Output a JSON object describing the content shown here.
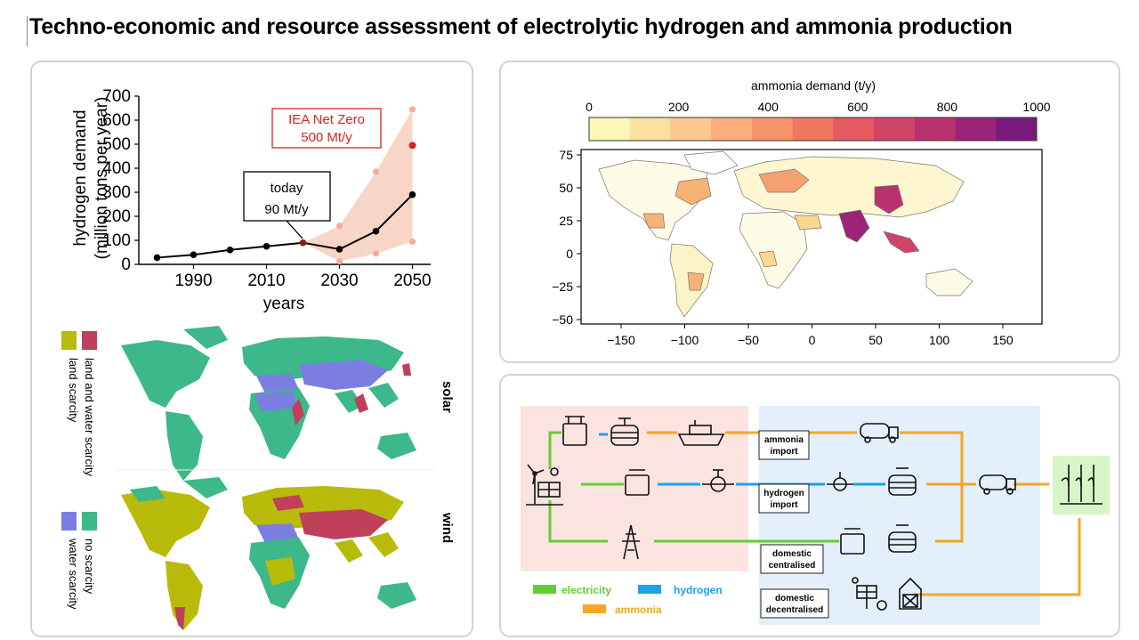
{
  "title": "Techno-economic and resource assessment of electrolytic hydrogen and ammonia production",
  "colors": {
    "electricity": "#66cc33",
    "hydrogen": "#1aa3ee",
    "ammonia": "#f5a623",
    "iea": "#e02020",
    "band": "#f6c8b4",
    "no_scarcity": "#3cb88a",
    "water_scarcity": "#7b7ee0",
    "land_scarcity": "#b8bb0a",
    "land_water_scarcity": "#c0405a",
    "red_zone": "#fbe3e0",
    "blue_zone": "#e3f0fb",
    "farm_box": "#d8f5c8"
  },
  "chart_data": {
    "type": "line",
    "xlabel": "years",
    "ylabel": "hydrogen demand",
    "ylabel2": "(million tons per year)",
    "xticks": [
      1990,
      2010,
      2030,
      2050
    ],
    "yticks": [
      0,
      100,
      200,
      300,
      400,
      500,
      600,
      700
    ],
    "xlim": [
      1975,
      2055
    ],
    "ylim": [
      0,
      700
    ],
    "series": [
      {
        "x": [
          1980,
          1990,
          2000,
          2010,
          2020,
          2030,
          2040,
          2050
        ],
        "values": [
          28,
          40,
          60,
          75,
          90,
          63,
          138,
          290
        ]
      }
    ],
    "band": {
      "x": [
        2020,
        2030,
        2040,
        2050
      ],
      "upper": [
        90,
        160,
        385,
        645
      ],
      "lower": [
        90,
        12,
        45,
        95
      ]
    },
    "highlight": {
      "x": 2050,
      "y": 495
    },
    "annotations": {
      "today_line1": "today",
      "today_line2": "90 Mt/y",
      "iea_line1": "IEA Net Zero",
      "iea_line2": "500 Mt/y"
    }
  },
  "scarcity": {
    "legend_land_water": "land and water scarcity",
    "legend_land": "land scarcity",
    "legend_no": "no scarcity",
    "legend_water": "water scarcity",
    "solar_label": "solar",
    "wind_label": "wind"
  },
  "demand_map": {
    "colorbar_label": "ammonia demand (t/y)",
    "colorbar_ticks": [
      "0",
      "200",
      "400",
      "600",
      "800",
      "1000"
    ],
    "colorbar_colors": [
      "#fcf6b8",
      "#fce0a0",
      "#fcc890",
      "#fbae7c",
      "#f7936a",
      "#ef765f",
      "#e35a60",
      "#d04468",
      "#b8326f",
      "#9c2478",
      "#7a1a7c"
    ],
    "xticks": [
      "−150",
      "−100",
      "−50",
      "0",
      "50",
      "100",
      "150"
    ],
    "yticks": [
      "75",
      "50",
      "25",
      "0",
      "−25",
      "−50"
    ]
  },
  "flow": {
    "ammonia_import": [
      "ammonia",
      "import"
    ],
    "hydrogen_import": [
      "hydrogen",
      "import"
    ],
    "domestic_centralised": [
      "domestic",
      "centralised"
    ],
    "domestic_decentralised": [
      "domestic",
      "decentralised"
    ],
    "legend_electricity": "electricity",
    "legend_hydrogen": "hydrogen",
    "legend_ammonia": "ammonia"
  }
}
